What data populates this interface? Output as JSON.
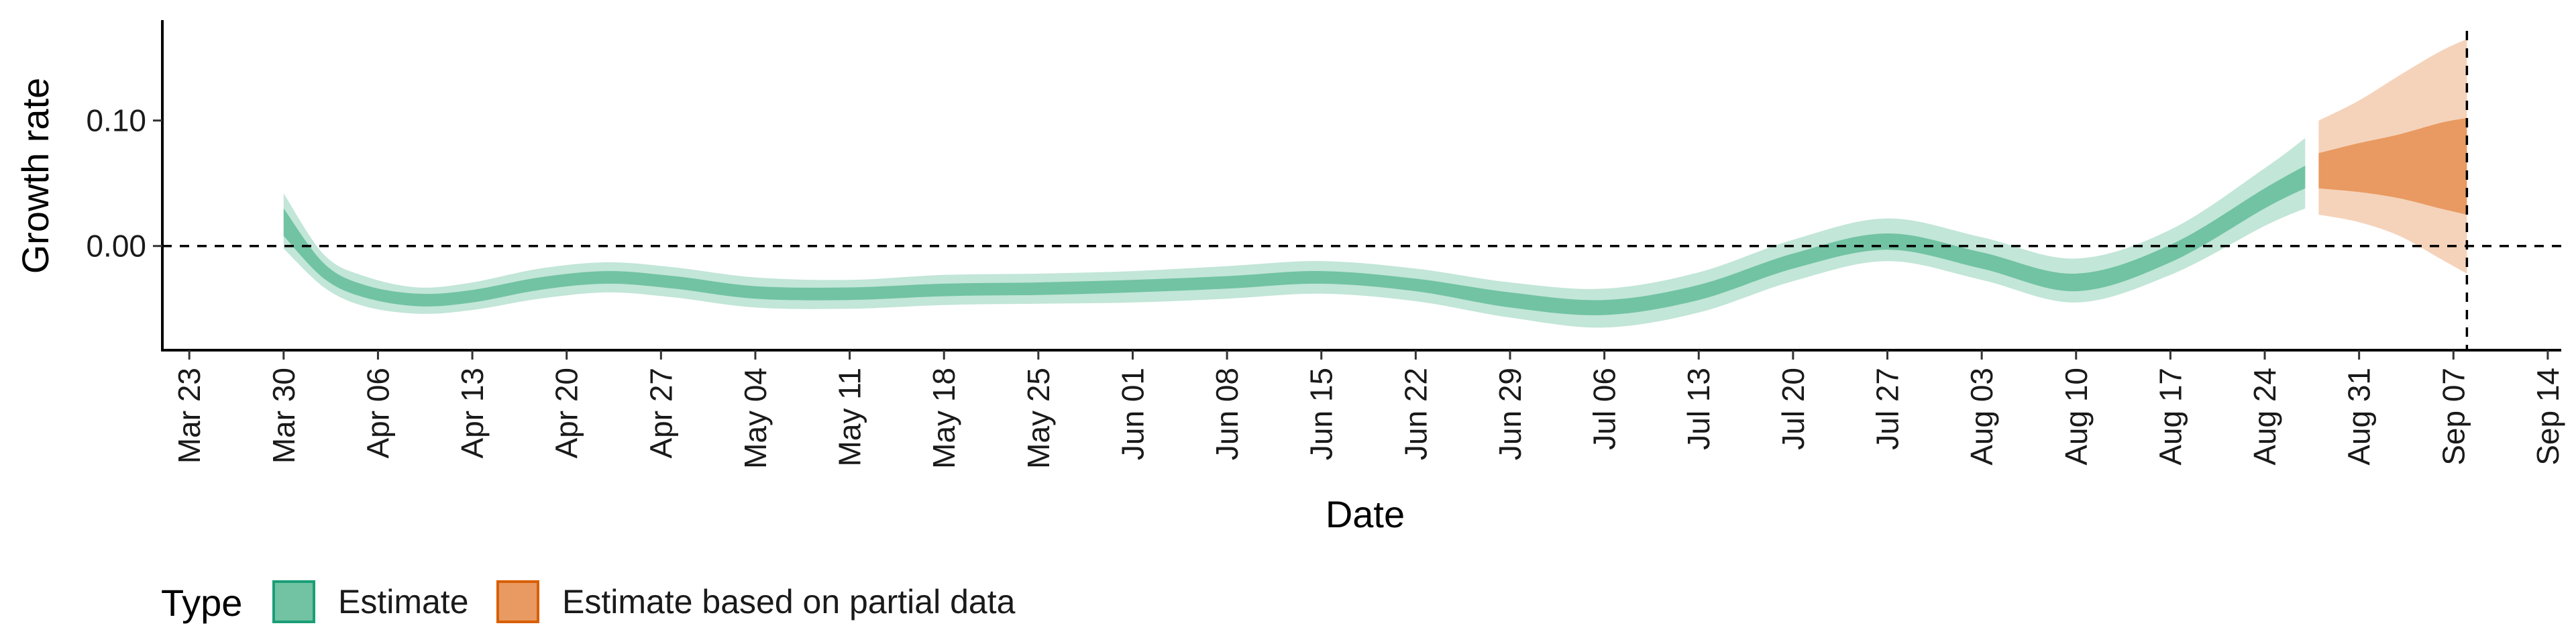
{
  "chart_data": {
    "type": "area",
    "xlabel": "Date",
    "ylabel": "Growth rate",
    "x_ticks": [
      "Mar 23",
      "Mar 30",
      "Apr 06",
      "Apr 13",
      "Apr 20",
      "Apr 27",
      "May 04",
      "May 11",
      "May 18",
      "May 25",
      "Jun 01",
      "Jun 08",
      "Jun 15",
      "Jun 22",
      "Jun 29",
      "Jul 06",
      "Jul 13",
      "Jul 20",
      "Jul 27",
      "Aug 03",
      "Aug 10",
      "Aug 17",
      "Aug 24",
      "Aug 31",
      "Sep 07",
      "Sep 14"
    ],
    "y_ticks": [
      "0.10",
      "0.00"
    ],
    "y_tick_values": [
      0.1,
      0.0
    ],
    "ylim": [
      -0.083,
      0.18
    ],
    "xlim": [
      "2020-03-21",
      "2020-09-15"
    ],
    "reference_lines": {
      "horizontal_y": 0.0,
      "vertical_x": "2020-09-08"
    },
    "grid": false,
    "legend": {
      "title": "Type",
      "position": "bottom-left",
      "entries": [
        {
          "label": "Estimate",
          "color": "#71c3a3"
        },
        {
          "label": "Estimate based on partial data",
          "color": "#e89a62"
        }
      ]
    },
    "series": [
      {
        "name": "Estimate",
        "color": "#71c3a3",
        "band_inner_color": "#71c3a3",
        "band_outer_color": "#c2e6d8",
        "points": [
          {
            "x": "2020-03-30",
            "median": 0.022,
            "lower50": 0.008,
            "upper50": 0.03,
            "lower90": -0.002,
            "upper90": 0.042
          },
          {
            "x": "2020-04-02",
            "median": -0.02,
            "lower50": -0.026,
            "upper50": -0.014,
            "lower90": -0.033,
            "upper90": -0.007
          },
          {
            "x": "2020-04-05",
            "median": -0.036,
            "lower50": -0.041,
            "upper50": -0.031,
            "lower90": -0.048,
            "upper90": -0.024
          },
          {
            "x": "2020-04-09",
            "median": -0.043,
            "lower50": -0.048,
            "upper50": -0.038,
            "lower90": -0.054,
            "upper90": -0.033
          },
          {
            "x": "2020-04-13",
            "median": -0.04,
            "lower50": -0.045,
            "upper50": -0.035,
            "lower90": -0.051,
            "upper90": -0.029
          },
          {
            "x": "2020-04-18",
            "median": -0.03,
            "lower50": -0.035,
            "upper50": -0.025,
            "lower90": -0.042,
            "upper90": -0.018
          },
          {
            "x": "2020-04-23",
            "median": -0.025,
            "lower50": -0.03,
            "upper50": -0.02,
            "lower90": -0.037,
            "upper90": -0.013
          },
          {
            "x": "2020-04-28",
            "median": -0.029,
            "lower50": -0.034,
            "upper50": -0.024,
            "lower90": -0.041,
            "upper90": -0.017
          },
          {
            "x": "2020-05-04",
            "median": -0.037,
            "lower50": -0.042,
            "upper50": -0.032,
            "lower90": -0.049,
            "upper90": -0.025
          },
          {
            "x": "2020-05-11",
            "median": -0.038,
            "lower50": -0.043,
            "upper50": -0.033,
            "lower90": -0.05,
            "upper90": -0.027
          },
          {
            "x": "2020-05-18",
            "median": -0.035,
            "lower50": -0.04,
            "upper50": -0.03,
            "lower90": -0.047,
            "upper90": -0.023
          },
          {
            "x": "2020-05-25",
            "median": -0.034,
            "lower50": -0.039,
            "upper50": -0.029,
            "lower90": -0.046,
            "upper90": -0.022
          },
          {
            "x": "2020-06-01",
            "median": -0.032,
            "lower50": -0.037,
            "upper50": -0.027,
            "lower90": -0.045,
            "upper90": -0.02
          },
          {
            "x": "2020-06-08",
            "median": -0.029,
            "lower50": -0.034,
            "upper50": -0.024,
            "lower90": -0.042,
            "upper90": -0.016
          },
          {
            "x": "2020-06-15",
            "median": -0.025,
            "lower50": -0.03,
            "upper50": -0.02,
            "lower90": -0.038,
            "upper90": -0.012
          },
          {
            "x": "2020-06-22",
            "median": -0.031,
            "lower50": -0.036,
            "upper50": -0.026,
            "lower90": -0.044,
            "upper90": -0.018
          },
          {
            "x": "2020-06-29",
            "median": -0.043,
            "lower50": -0.049,
            "upper50": -0.037,
            "lower90": -0.057,
            "upper90": -0.029
          },
          {
            "x": "2020-07-06",
            "median": -0.049,
            "lower50": -0.055,
            "upper50": -0.043,
            "lower90": -0.065,
            "upper90": -0.034
          },
          {
            "x": "2020-07-13",
            "median": -0.037,
            "lower50": -0.043,
            "upper50": -0.031,
            "lower90": -0.053,
            "upper90": -0.021
          },
          {
            "x": "2020-07-20",
            "median": -0.012,
            "lower50": -0.018,
            "upper50": -0.006,
            "lower90": -0.028,
            "upper90": 0.005
          },
          {
            "x": "2020-07-27",
            "median": 0.003,
            "lower50": -0.003,
            "upper50": 0.01,
            "lower90": -0.012,
            "upper90": 0.022
          },
          {
            "x": "2020-08-03",
            "median": -0.012,
            "lower50": -0.018,
            "upper50": -0.005,
            "lower90": -0.027,
            "upper90": 0.007
          },
          {
            "x": "2020-08-10",
            "median": -0.029,
            "lower50": -0.036,
            "upper50": -0.022,
            "lower90": -0.045,
            "upper90": -0.01
          },
          {
            "x": "2020-08-17",
            "median": -0.006,
            "lower50": -0.013,
            "upper50": 0.001,
            "lower90": -0.023,
            "upper90": 0.013
          },
          {
            "x": "2020-08-24",
            "median": 0.038,
            "lower50": 0.03,
            "upper50": 0.046,
            "lower90": 0.016,
            "upper90": 0.062
          },
          {
            "x": "2020-08-27",
            "median": 0.055,
            "lower50": 0.046,
            "upper50": 0.064,
            "lower90": 0.03,
            "upper90": 0.086
          }
        ]
      },
      {
        "name": "Estimate based on partial data",
        "color": "#e89a62",
        "band_inner_color": "#e89a62",
        "band_outer_color": "#f5d3ba",
        "points": [
          {
            "x": "2020-08-28",
            "median": 0.06,
            "lower50": 0.046,
            "upper50": 0.074,
            "lower90": 0.025,
            "upper90": 0.1
          },
          {
            "x": "2020-08-31",
            "median": 0.062,
            "lower50": 0.043,
            "upper50": 0.082,
            "lower90": 0.019,
            "upper90": 0.116
          },
          {
            "x": "2020-09-03",
            "median": 0.063,
            "lower50": 0.038,
            "upper50": 0.089,
            "lower90": 0.008,
            "upper90": 0.136
          },
          {
            "x": "2020-09-06",
            "median": 0.064,
            "lower50": 0.03,
            "upper50": 0.098,
            "lower90": -0.01,
            "upper90": 0.155
          },
          {
            "x": "2020-09-08",
            "median": 0.064,
            "lower50": 0.025,
            "upper50": 0.102,
            "lower90": -0.022,
            "upper90": 0.165
          }
        ]
      }
    ]
  }
}
